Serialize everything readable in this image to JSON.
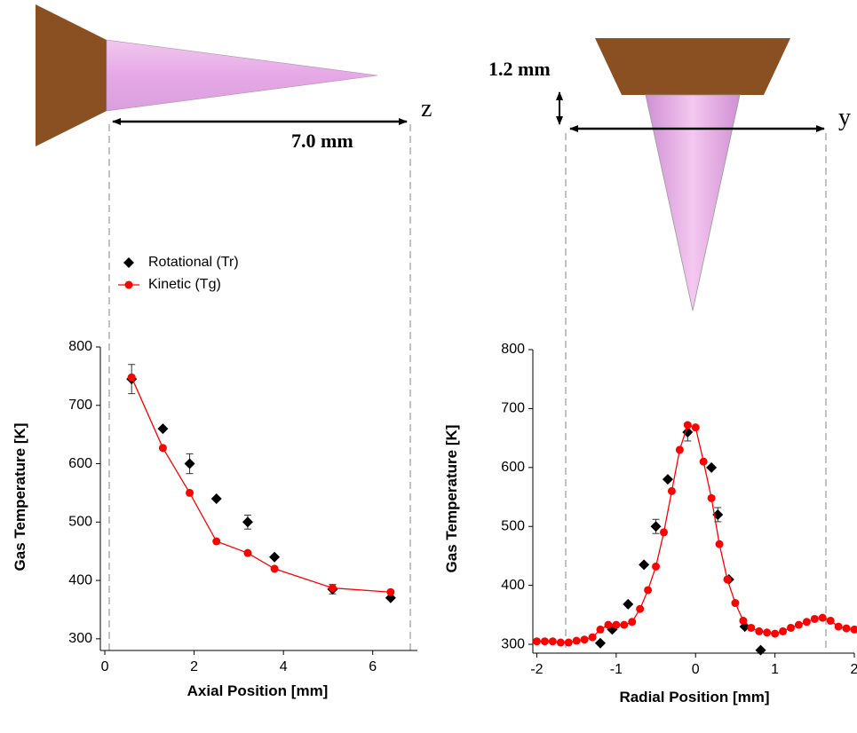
{
  "chart_data": [
    {
      "type": "scatter",
      "x_label": "Axial Position [mm]",
      "y_label": "Gas Temperature [K]",
      "annotations": [
        "7.0 mm",
        "z"
      ],
      "xlim": [
        -0.1,
        7.0
      ],
      "xticks": [
        0,
        2,
        4,
        6
      ],
      "ylim": [
        280,
        800
      ],
      "yticks": [
        300,
        400,
        500,
        600,
        700,
        800
      ],
      "legend": true,
      "series": [
        {
          "name": "Rotational (Tr)",
          "color": "#000000",
          "marker": "diamond",
          "line": false,
          "x": [
            0.6,
            1.3,
            1.9,
            2.5,
            3.2,
            3.8,
            5.1,
            6.4
          ],
          "values": [
            745,
            660,
            600,
            540,
            500,
            440,
            385,
            370
          ],
          "errors": [
            25,
            null,
            17,
            null,
            12,
            null,
            8,
            null
          ]
        },
        {
          "name": "Kinetic (Tg)",
          "color": "#ff0000",
          "marker": "circle",
          "line": true,
          "x": [
            0.6,
            1.3,
            1.9,
            2.5,
            3.2,
            3.8,
            5.1,
            6.4
          ],
          "values": [
            748,
            627,
            550,
            467,
            447,
            420,
            387,
            380
          ]
        }
      ]
    },
    {
      "type": "scatter",
      "x_label": "Radial Position [mm]",
      "y_label": "Gas Temperature [K]",
      "annotations": [
        "1.2 mm",
        "y"
      ],
      "xlim": [
        -2.05,
        2.0
      ],
      "xticks": [
        -2,
        -1,
        0,
        1,
        2
      ],
      "ylim": [
        285,
        800
      ],
      "yticks": [
        300,
        400,
        500,
        600,
        700,
        800
      ],
      "legend": false,
      "series": [
        {
          "color": "#000000",
          "marker": "diamond",
          "line": false,
          "x": [
            -1.2,
            -1.05,
            -0.85,
            -0.65,
            -0.5,
            -0.35,
            -0.1,
            0.2,
            0.28,
            0.42,
            0.62,
            0.82
          ],
          "values": [
            302,
            325,
            368,
            435,
            500,
            580,
            660,
            600,
            520,
            410,
            330,
            290
          ],
          "errors": [
            null,
            null,
            null,
            null,
            12,
            null,
            15,
            null,
            12,
            null,
            null,
            null
          ]
        },
        {
          "color": "#ff0000",
          "marker": "circle",
          "line": true,
          "x": [
            -2.0,
            -1.9,
            -1.8,
            -1.7,
            -1.6,
            -1.5,
            -1.4,
            -1.3,
            -1.2,
            -1.1,
            -1.0,
            -0.9,
            -0.8,
            -0.7,
            -0.6,
            -0.5,
            -0.4,
            -0.3,
            -0.2,
            -0.1,
            0.0,
            0.1,
            0.2,
            0.3,
            0.4,
            0.5,
            0.6,
            0.7,
            0.8,
            0.9,
            1.0,
            1.1,
            1.2,
            1.3,
            1.4,
            1.5,
            1.6,
            1.7,
            1.8,
            1.9,
            2.0
          ],
          "values": [
            305,
            305,
            305,
            303,
            303,
            306,
            308,
            312,
            325,
            333,
            333,
            333,
            338,
            360,
            392,
            432,
            490,
            560,
            630,
            672,
            668,
            610,
            548,
            470,
            410,
            370,
            340,
            328,
            322,
            320,
            318,
            322,
            328,
            333,
            338,
            343,
            345,
            340,
            330,
            327,
            325
          ]
        }
      ]
    }
  ]
}
